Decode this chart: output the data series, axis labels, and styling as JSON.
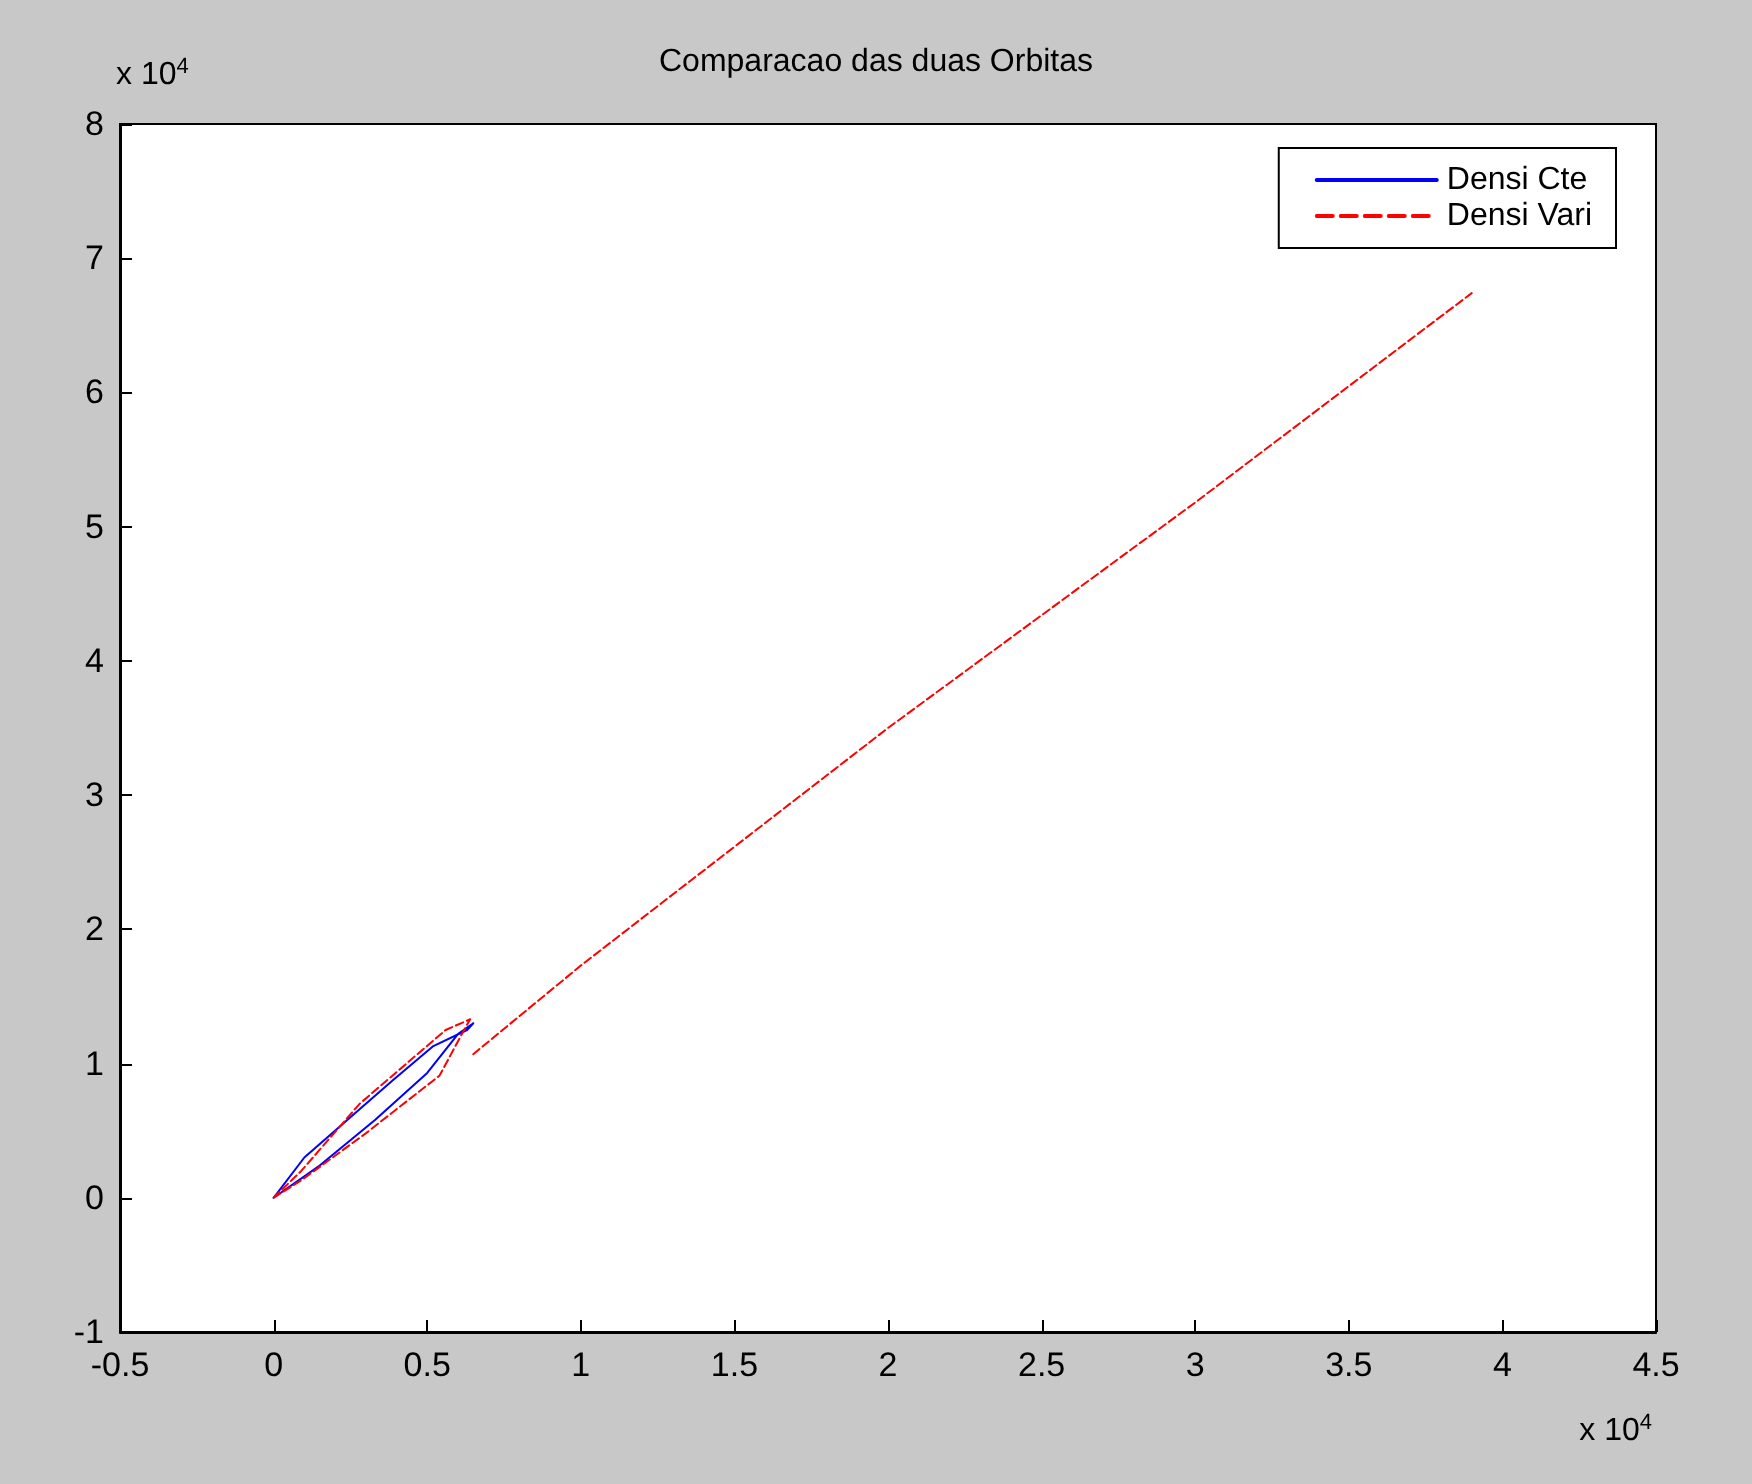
{
  "chart_data": {
    "type": "line",
    "title": "Comparacao das duas Orbitas",
    "annotations": [
      "x 10$^{4}$",
      "x 10$^{4}$"
    ],
    "series": [
      {
        "name": "Densi Cte",
        "color": "#0000ff",
        "line_style": "solid",
        "x": [
          0,
          0.1,
          0.25,
          0.39,
          0.52,
          0.63,
          0.65,
          null,
          0,
          0.15,
          0.33,
          0.5,
          0.6,
          0.65
        ],
        "values": [
          0,
          0.3,
          0.6,
          0.88,
          1.13,
          1.25,
          1.3,
          null,
          0,
          0.24,
          0.58,
          0.93,
          1.22,
          1.3
        ]
      },
      {
        "name": "Densi Vari",
        "color": "#ff0000",
        "line_style": "dashed",
        "x": [
          0,
          0.09,
          0.28,
          0.56,
          0.64,
          null,
          0,
          0.09,
          0.3,
          0.54,
          0.62,
          0.64,
          null,
          0.65,
          1,
          2,
          3,
          3.9
        ],
        "values": [
          0,
          0.2,
          0.7,
          1.25,
          1.33,
          null,
          0,
          0.13,
          0.48,
          0.91,
          1.25,
          1.33,
          null,
          1.07,
          1.73,
          3.5,
          5.18,
          6.74
        ]
      }
    ],
    "xlim": [
      -0.5,
      4.5
    ],
    "xticks": [
      -0.5,
      0,
      0.5,
      1,
      1.5,
      2,
      2.5,
      3,
      3.5,
      4,
      4.5
    ],
    "ylim": [
      -1,
      8
    ],
    "yticks": [
      -1,
      0,
      1,
      2,
      3,
      4,
      5,
      6,
      7,
      8
    ],
    "grid": false,
    "legend": "top right",
    "marker": "none"
  }
}
